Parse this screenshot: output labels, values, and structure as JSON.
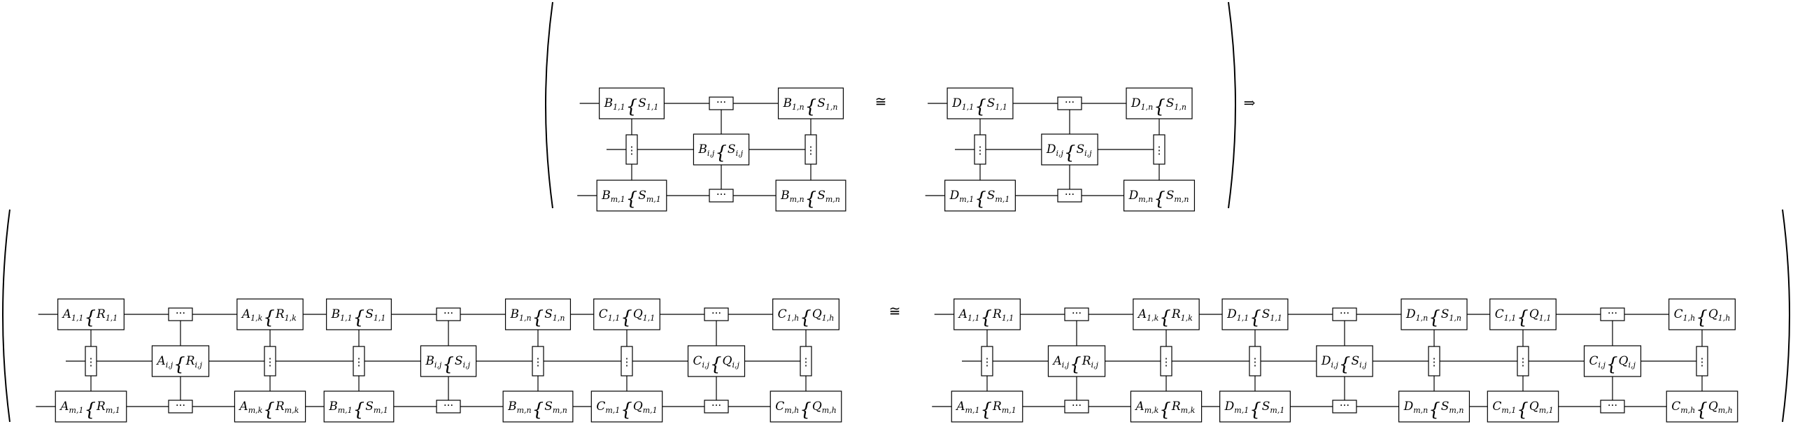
{
  "top_equation": {
    "left_grid": {
      "top_left": {
        "letter": "B",
        "letter_sub": "1,1",
        "set": "S",
        "set_sub": "1,1"
      },
      "top_right": {
        "letter": "B",
        "letter_sub": "1,n",
        "set": "S",
        "set_sub": "1,n"
      },
      "middle": {
        "letter": "B",
        "letter_sub": "i,j",
        "set": "S",
        "set_sub": "i,j"
      },
      "bot_left": {
        "letter": "B",
        "letter_sub": "m,1",
        "set": "S",
        "set_sub": "m,1"
      },
      "bot_right": {
        "letter": "B",
        "letter_sub": "m,n",
        "set": "S",
        "set_sub": "m,n"
      }
    },
    "relation": "≅",
    "right_grid": {
      "top_left": {
        "letter": "D",
        "letter_sub": "1,1",
        "set": "S",
        "set_sub": "1,1"
      },
      "top_right": {
        "letter": "D",
        "letter_sub": "1,n",
        "set": "S",
        "set_sub": "1,n"
      },
      "middle": {
        "letter": "D",
        "letter_sub": "i,j",
        "set": "S",
        "set_sub": "i,j"
      },
      "bot_left": {
        "letter": "D",
        "letter_sub": "m,1",
        "set": "S",
        "set_sub": "m,1"
      },
      "bot_right": {
        "letter": "D",
        "letter_sub": "m,n",
        "set": "S",
        "set_sub": "m,n"
      }
    },
    "implies": "⇒"
  },
  "bottom_equation": {
    "left_side": [
      {
        "top_left": {
          "letter": "A",
          "letter_sub": "1,1",
          "set": "R",
          "set_sub": "1,1"
        },
        "top_right": {
          "letter": "A",
          "letter_sub": "1,k",
          "set": "R",
          "set_sub": "1,k"
        },
        "middle": {
          "letter": "A",
          "letter_sub": "i,j",
          "set": "R",
          "set_sub": "i,j"
        },
        "bot_left": {
          "letter": "A",
          "letter_sub": "m,1",
          "set": "R",
          "set_sub": "m,1"
        },
        "bot_right": {
          "letter": "A",
          "letter_sub": "m,k",
          "set": "R",
          "set_sub": "m,k"
        }
      },
      {
        "top_left": {
          "letter": "B",
          "letter_sub": "1,1",
          "set": "S",
          "set_sub": "1,1"
        },
        "top_right": {
          "letter": "B",
          "letter_sub": "1,n",
          "set": "S",
          "set_sub": "1,n"
        },
        "middle": {
          "letter": "B",
          "letter_sub": "i,j",
          "set": "S",
          "set_sub": "i,j"
        },
        "bot_left": {
          "letter": "B",
          "letter_sub": "m,1",
          "set": "S",
          "set_sub": "m,1"
        },
        "bot_right": {
          "letter": "B",
          "letter_sub": "m,n",
          "set": "S",
          "set_sub": "m,n"
        }
      },
      {
        "top_left": {
          "letter": "C",
          "letter_sub": "1,1",
          "set": "Q",
          "set_sub": "1,1"
        },
        "top_right": {
          "letter": "C",
          "letter_sub": "1,h",
          "set": "Q",
          "set_sub": "1,h"
        },
        "middle": {
          "letter": "C",
          "letter_sub": "i,j",
          "set": "Q",
          "set_sub": "i,j"
        },
        "bot_left": {
          "letter": "C",
          "letter_sub": "m,1",
          "set": "Q",
          "set_sub": "m,1"
        },
        "bot_right": {
          "letter": "C",
          "letter_sub": "m,h",
          "set": "Q",
          "set_sub": "m,h"
        }
      }
    ],
    "relation": "≅",
    "right_side": [
      {
        "top_left": {
          "letter": "A",
          "letter_sub": "1,1",
          "set": "R",
          "set_sub": "1,1"
        },
        "top_right": {
          "letter": "A",
          "letter_sub": "1,k",
          "set": "R",
          "set_sub": "1,k"
        },
        "middle": {
          "letter": "A",
          "letter_sub": "i,j",
          "set": "R",
          "set_sub": "i,j"
        },
        "bot_left": {
          "letter": "A",
          "letter_sub": "m,1",
          "set": "R",
          "set_sub": "m,1"
        },
        "bot_right": {
          "letter": "A",
          "letter_sub": "m,k",
          "set": "R",
          "set_sub": "m,k"
        }
      },
      {
        "top_left": {
          "letter": "D",
          "letter_sub": "1,1",
          "set": "S",
          "set_sub": "1,1"
        },
        "top_right": {
          "letter": "D",
          "letter_sub": "1,n",
          "set": "S",
          "set_sub": "1,n"
        },
        "middle": {
          "letter": "D",
          "letter_sub": "i,j",
          "set": "S",
          "set_sub": "i,j"
        },
        "bot_left": {
          "letter": "D",
          "letter_sub": "m,1",
          "set": "S",
          "set_sub": "m,1"
        },
        "bot_right": {
          "letter": "D",
          "letter_sub": "m,n",
          "set": "S",
          "set_sub": "m,n"
        }
      },
      {
        "top_left": {
          "letter": "C",
          "letter_sub": "1,1",
          "set": "Q",
          "set_sub": "1,1"
        },
        "top_right": {
          "letter": "C",
          "letter_sub": "1,h",
          "set": "Q",
          "set_sub": "1,h"
        },
        "middle": {
          "letter": "C",
          "letter_sub": "i,j",
          "set": "Q",
          "set_sub": "i,j"
        },
        "bot_left": {
          "letter": "C",
          "letter_sub": "m,1",
          "set": "Q",
          "set_sub": "m,1"
        },
        "bot_right": {
          "letter": "C",
          "letter_sub": "m,h",
          "set": "Q",
          "set_sub": "m,h"
        }
      }
    ]
  },
  "glyphs": {
    "h_dots": "···",
    "v_dots": "⋮",
    "brace": "{"
  }
}
